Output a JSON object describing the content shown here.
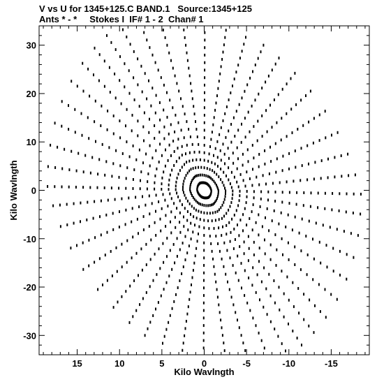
{
  "header": {
    "line1": "V vs U for 1345+125.C BAND.1   Source:1345+125",
    "line2": "Ants * - *     Stokes I  IF# 1 - 2  Chan# 1"
  },
  "chart_data": {
    "type": "scatter",
    "xlabel": "Kilo Wavlngth",
    "ylabel": "Kilo Wavlngth",
    "xlim": [
      19.5,
      -19.5
    ],
    "ylim": [
      -34,
      34
    ],
    "xticks": [
      15,
      10,
      5,
      0,
      -5,
      -10,
      -15
    ],
    "yticks": [
      30,
      20,
      10,
      0,
      -10,
      -20,
      -30
    ],
    "grid": false,
    "marker_color": "#000000",
    "pattern": {
      "description_free_params": true,
      "arms": [
        {
          "u_end": 18.5,
          "v_end": 0.8
        },
        {
          "u_end": 11.5,
          "v_end": 32.0
        },
        {
          "u_end": -7.0,
          "v_end": 30.0
        },
        {
          "u_end": -18.5,
          "v_end": -0.8
        },
        {
          "u_end": -11.5,
          "v_end": -32.0
        },
        {
          "u_end": 7.0,
          "v_end": -30.0
        }
      ],
      "steps": 22,
      "tracks_per_pair": 7
    }
  }
}
